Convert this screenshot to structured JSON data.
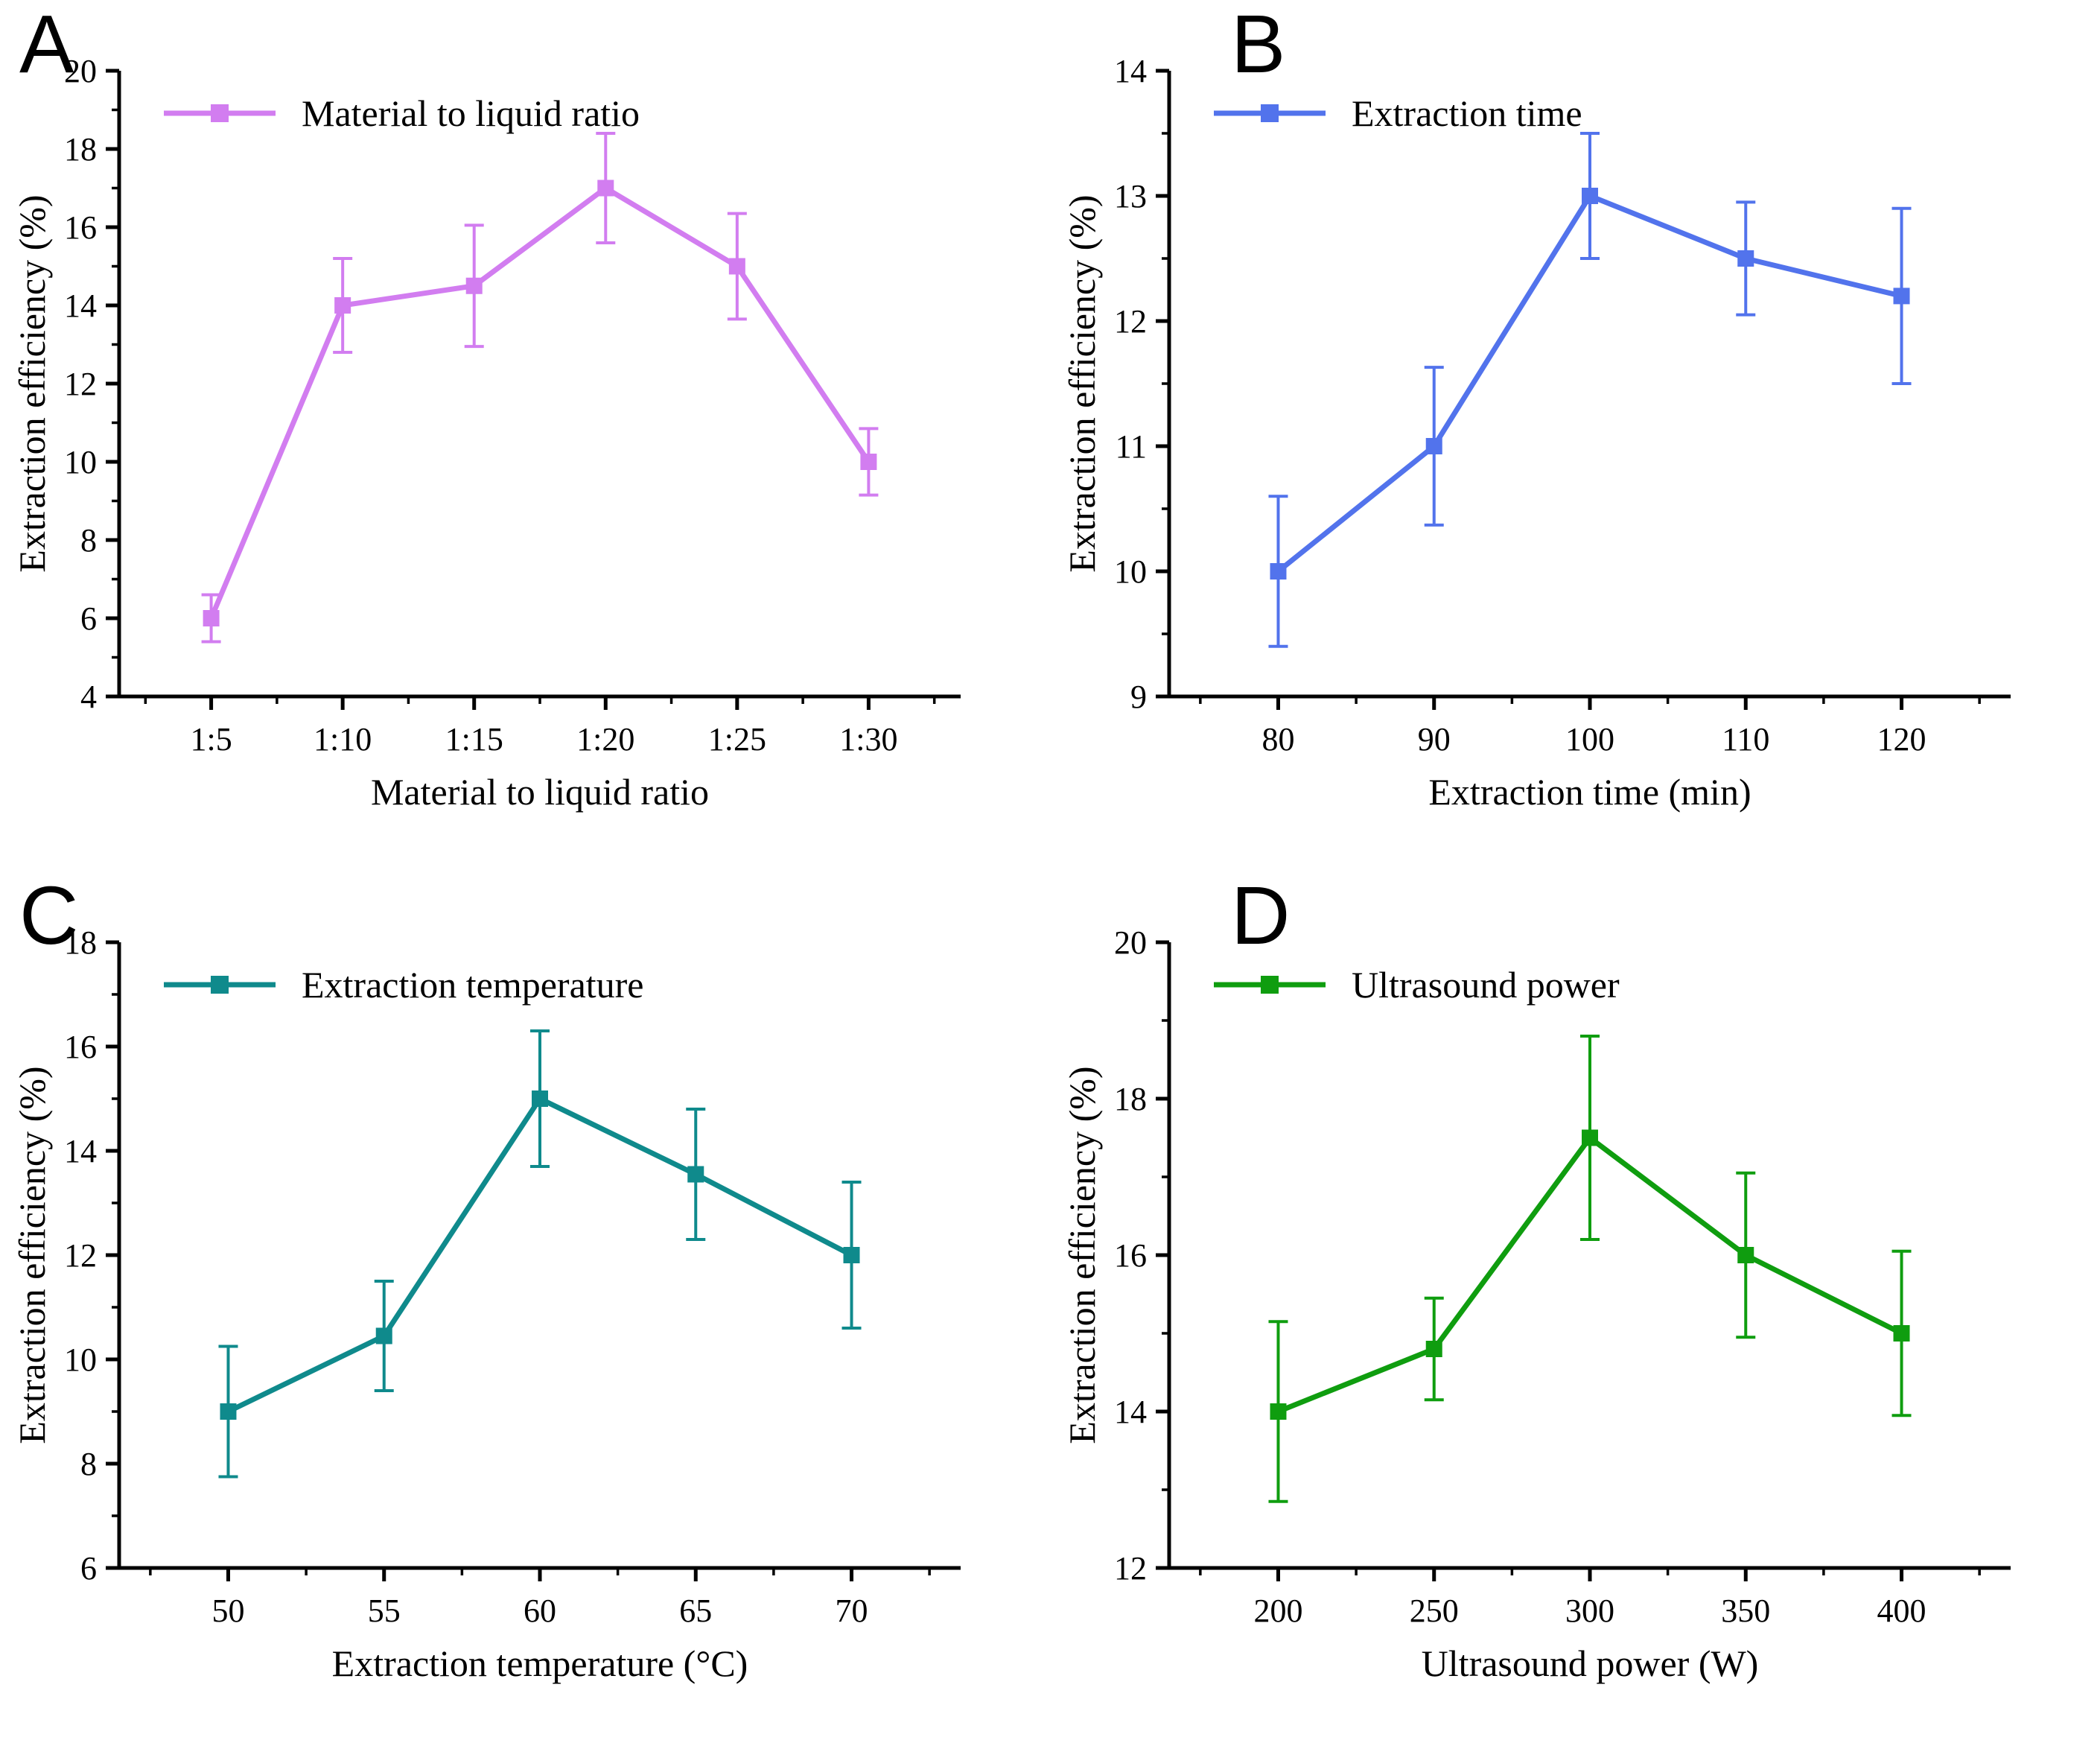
{
  "page": {
    "background": "#ffffff",
    "text_color": "#000000"
  },
  "chart_data": [
    {
      "type": "line",
      "panel": "A",
      "legend": "Material to liquid ratio",
      "color": "#d27df0",
      "xlabel": "Material to liquid ratio",
      "ylabel": "Extraction efficiency (%)",
      "x_labels": [
        "1:5",
        "1:10",
        "1:15",
        "1:20",
        "1:25",
        "1:30"
      ],
      "values": [
        6.0,
        14.0,
        14.5,
        17.0,
        15.0,
        10.0
      ],
      "errors": [
        0.6,
        1.2,
        1.55,
        1.4,
        1.35,
        0.85
      ],
      "ylim": [
        4,
        20
      ],
      "y_major": 2,
      "y_minor": 1,
      "marker": "square",
      "grid": false,
      "legend_position": "top-left"
    },
    {
      "type": "line",
      "panel": "B",
      "legend": "Extraction time",
      "color": "#5273ec",
      "xlabel": "Extraction time (min)",
      "ylabel": "Extraction efficiency (%)",
      "x_labels": [
        "80",
        "90",
        "100",
        "110",
        "120"
      ],
      "values": [
        10.0,
        11.0,
        13.0,
        12.5,
        12.2
      ],
      "errors": [
        0.6,
        0.63,
        0.5,
        0.45,
        0.7
      ],
      "ylim": [
        9,
        14
      ],
      "y_major": 1,
      "y_minor": 0.5,
      "marker": "square",
      "grid": false,
      "legend_position": "top-left"
    },
    {
      "type": "line",
      "panel": "C",
      "legend": "Extraction temperature",
      "color": "#0f8a8c",
      "xlabel": "Extraction temperature  (°C)",
      "ylabel": "Extraction efficiency (%)",
      "x_labels": [
        "50",
        "55",
        "60",
        "65",
        "70"
      ],
      "values": [
        9.0,
        10.45,
        15.0,
        13.55,
        12.0
      ],
      "errors": [
        1.25,
        1.05,
        1.3,
        1.25,
        1.4
      ],
      "ylim": [
        6,
        18
      ],
      "y_major": 2,
      "y_minor": 1,
      "marker": "square",
      "grid": false,
      "legend_position": "top-left"
    },
    {
      "type": "line",
      "panel": "D",
      "legend": "Ultrasound power",
      "color": "#0f9d0f",
      "xlabel": "Ultrasound power (W)",
      "ylabel": "Extraction efficiency (%)",
      "x_labels": [
        "200",
        "250",
        "300",
        "350",
        "400"
      ],
      "values": [
        14.0,
        14.8,
        17.5,
        16.0,
        15.0
      ],
      "errors": [
        1.15,
        0.65,
        1.3,
        1.05,
        1.05
      ],
      "ylim": [
        12,
        20
      ],
      "y_major": 2,
      "y_minor": 1,
      "marker": "square",
      "grid": false,
      "legend_position": "top-left"
    }
  ]
}
